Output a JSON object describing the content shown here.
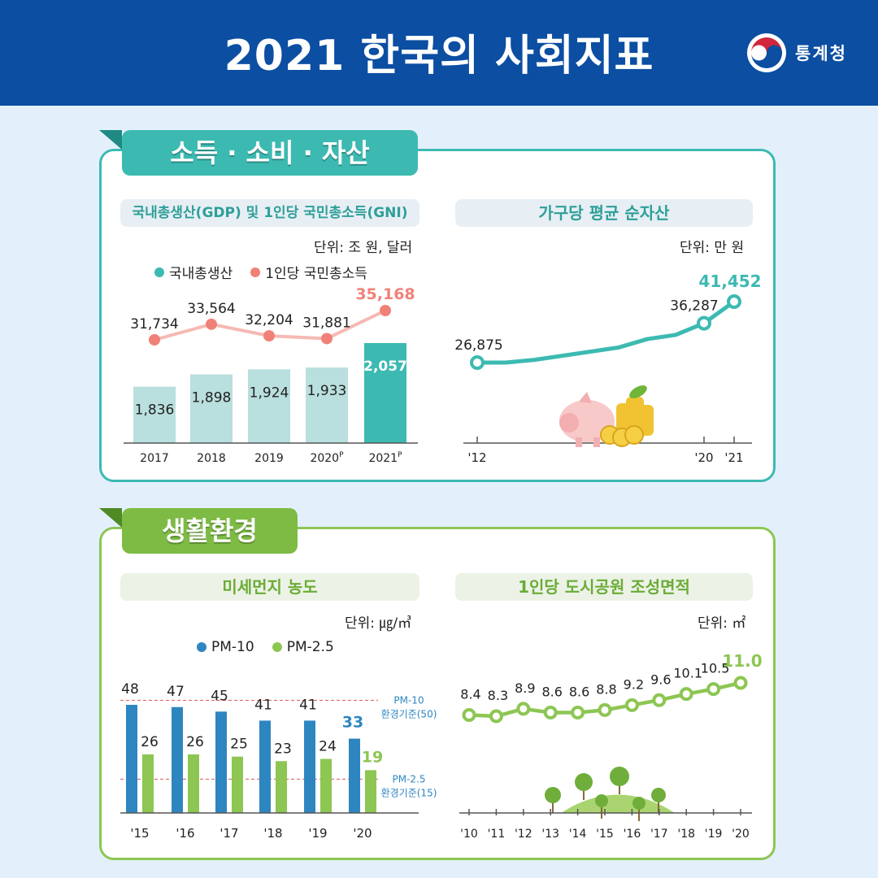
{
  "header": {
    "title": "2021 한국의 사회지표",
    "org": "통계청"
  },
  "colors": {
    "header": "#0b4ea2",
    "teal": "#3cbab2",
    "teal_light": "#b9dfde",
    "salmon": "#f08178",
    "green": "#8dc653",
    "blue": "#2e86c1",
    "bg": "#e3f0fb"
  },
  "section1": {
    "tab": "소득 · 소비 · 자산",
    "panel_left": {
      "title": "국내총생산(GDP) 및 1인당 국민총소득(GNI)",
      "unit": "단위: 조 원, 달러"
    },
    "panel_right": {
      "title": "가구당 평균 순자산",
      "unit": "단위: 만 원"
    }
  },
  "section2": {
    "tab": "생활환경",
    "panel_left": {
      "title": "미세먼지 농도",
      "unit": "단위: ㎍/㎥"
    },
    "panel_right": {
      "title": "1인당 도시공원 조성면적",
      "unit": "단위: ㎡"
    }
  },
  "chart_data": [
    {
      "type": "bar",
      "categories": [
        "2017",
        "2018",
        "2019",
        "2020P",
        "2021P"
      ],
      "series": [
        {
          "name": "국내총생산",
          "type": "bar",
          "values": [
            1836,
            1898,
            1924,
            1933,
            2057
          ],
          "labels": [
            "1,836",
            "1,898",
            "1,924",
            "1,933",
            "2,057"
          ]
        },
        {
          "name": "1인당 국민총소득",
          "type": "line",
          "values": [
            31734,
            33564,
            32204,
            31881,
            35168
          ],
          "labels": [
            "31,734",
            "33,564",
            "32,204",
            "31,881",
            "35,168"
          ]
        }
      ],
      "highlight_index": 4
    },
    {
      "type": "line",
      "x": [
        "'12",
        "'13",
        "'14",
        "'15",
        "'16",
        "'17",
        "'18",
        "'19",
        "'20",
        "'21"
      ],
      "x_tick_labels": [
        "'12",
        "'20",
        "'21"
      ],
      "values": [
        26875,
        26875,
        27500,
        28500,
        29500,
        30500,
        32500,
        33500,
        36287,
        41452
      ],
      "labeled_points": {
        "0": "26,875",
        "8": "36,287",
        "9": "41,452"
      }
    },
    {
      "type": "bar",
      "categories": [
        "'15",
        "'16",
        "'17",
        "'18",
        "'19",
        "'20"
      ],
      "series": [
        {
          "name": "PM-10",
          "values": [
            48,
            47,
            45,
            41,
            41,
            33
          ]
        },
        {
          "name": "PM-2.5",
          "values": [
            26,
            26,
            25,
            23,
            24,
            19
          ]
        }
      ],
      "reference_lines": [
        {
          "label": [
            "PM-10",
            "환경기준(50)"
          ],
          "value": 50
        },
        {
          "label": [
            "PM-2.5",
            "환경기준(15)"
          ],
          "value": 15
        }
      ]
    },
    {
      "type": "line",
      "x": [
        "'10",
        "'11",
        "'12",
        "'13",
        "'14",
        "'15",
        "'16",
        "'17",
        "'18",
        "'19",
        "'20"
      ],
      "values": [
        8.4,
        8.3,
        8.9,
        8.6,
        8.6,
        8.8,
        9.2,
        9.6,
        10.1,
        10.5,
        11.0
      ],
      "labels": [
        "8.4",
        "8.3",
        "8.9",
        "8.6",
        "8.6",
        "8.8",
        "9.2",
        "9.6",
        "10.1",
        "10.5",
        "11.0"
      ]
    }
  ]
}
